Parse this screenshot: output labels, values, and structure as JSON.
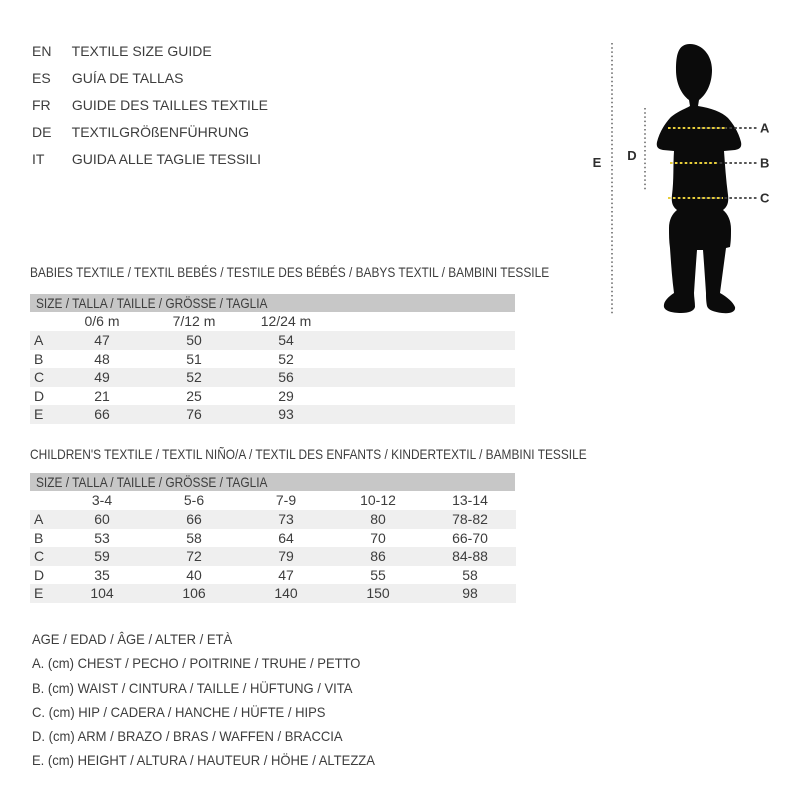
{
  "languages": [
    {
      "code": "EN",
      "label": "TEXTILE SIZE GUIDE"
    },
    {
      "code": "ES",
      "label": "GUÍA DE TALLAS"
    },
    {
      "code": "FR",
      "label": "GUIDE DES TAILLES TEXTILE"
    },
    {
      "code": "DE",
      "label": "TEXTILGRÖßENFÜHRUNG"
    },
    {
      "code": "IT",
      "label": "GUIDA ALLE TAGLIE TESSILI"
    }
  ],
  "figure": {
    "labels": {
      "a": "A",
      "b": "B",
      "c": "C",
      "d": "D",
      "e": "E"
    },
    "colors": {
      "silhouette": "#0b0b0b",
      "dash_yellow": "#e7cd3a",
      "dash_dark": "#3f3f3f",
      "dotted_gray": "#555555"
    }
  },
  "babies": {
    "title": "BABIES TEXTILE / TEXTIL BEBÉS / TESTILE DES BÉBÉS / BABYS TEXTIL / BAMBINI TESSILE",
    "size_bar": "SIZE / TALLA / TAILLE / GRÖSSE / TAGLIA",
    "columns": [
      "0/6 m",
      "7/12 m",
      "12/24 m"
    ],
    "rows": [
      {
        "label": "A",
        "values": [
          "47",
          "50",
          "54"
        ]
      },
      {
        "label": "B",
        "values": [
          "48",
          "51",
          "52"
        ]
      },
      {
        "label": "C",
        "values": [
          "49",
          "52",
          "56"
        ]
      },
      {
        "label": "D",
        "values": [
          "21",
          "25",
          "29"
        ]
      },
      {
        "label": "E",
        "values": [
          "66",
          "76",
          "93"
        ]
      }
    ]
  },
  "children": {
    "title": "CHILDREN'S TEXTILE / TEXTIL NIÑO/A / TEXTIL DES ENFANTS / KINDERTEXTIL / BAMBINI TESSILE",
    "size_bar": "SIZE / TALLA / TAILLE / GRÖSSE / TAGLIA",
    "columns": [
      "3-4",
      "5-6",
      "7-9",
      "10-12",
      "13-14"
    ],
    "rows": [
      {
        "label": "A",
        "values": [
          "60",
          "66",
          "73",
          "80",
          "78-82"
        ]
      },
      {
        "label": "B",
        "values": [
          "53",
          "58",
          "64",
          "70",
          "66-70"
        ]
      },
      {
        "label": "C",
        "values": [
          "59",
          "72",
          "79",
          "86",
          "84-88"
        ]
      },
      {
        "label": "D",
        "values": [
          "35",
          "40",
          "47",
          "55",
          "58"
        ]
      },
      {
        "label": "E",
        "values": [
          "104",
          "106",
          "140",
          "150",
          "98"
        ]
      }
    ]
  },
  "legend": {
    "age": "AGE / EDAD / ÂGE / ALTER / ETÀ",
    "items": [
      "A. (cm) CHEST / PECHO / POITRINE / TRUHE / PETTO",
      "B. (cm) WAIST / CINTURA / TAILLE / HÜFTUNG / VITA",
      "C. (cm) HIP / CADERA / HANCHE / HÜFTE / HIPS",
      "D. (cm) ARM / BRAZO / BRAS / WAFFEN / BRACCIA",
      "E. (cm) HEIGHT / ALTURA / HAUTEUR / HÖHE / ALTEZZA"
    ]
  }
}
